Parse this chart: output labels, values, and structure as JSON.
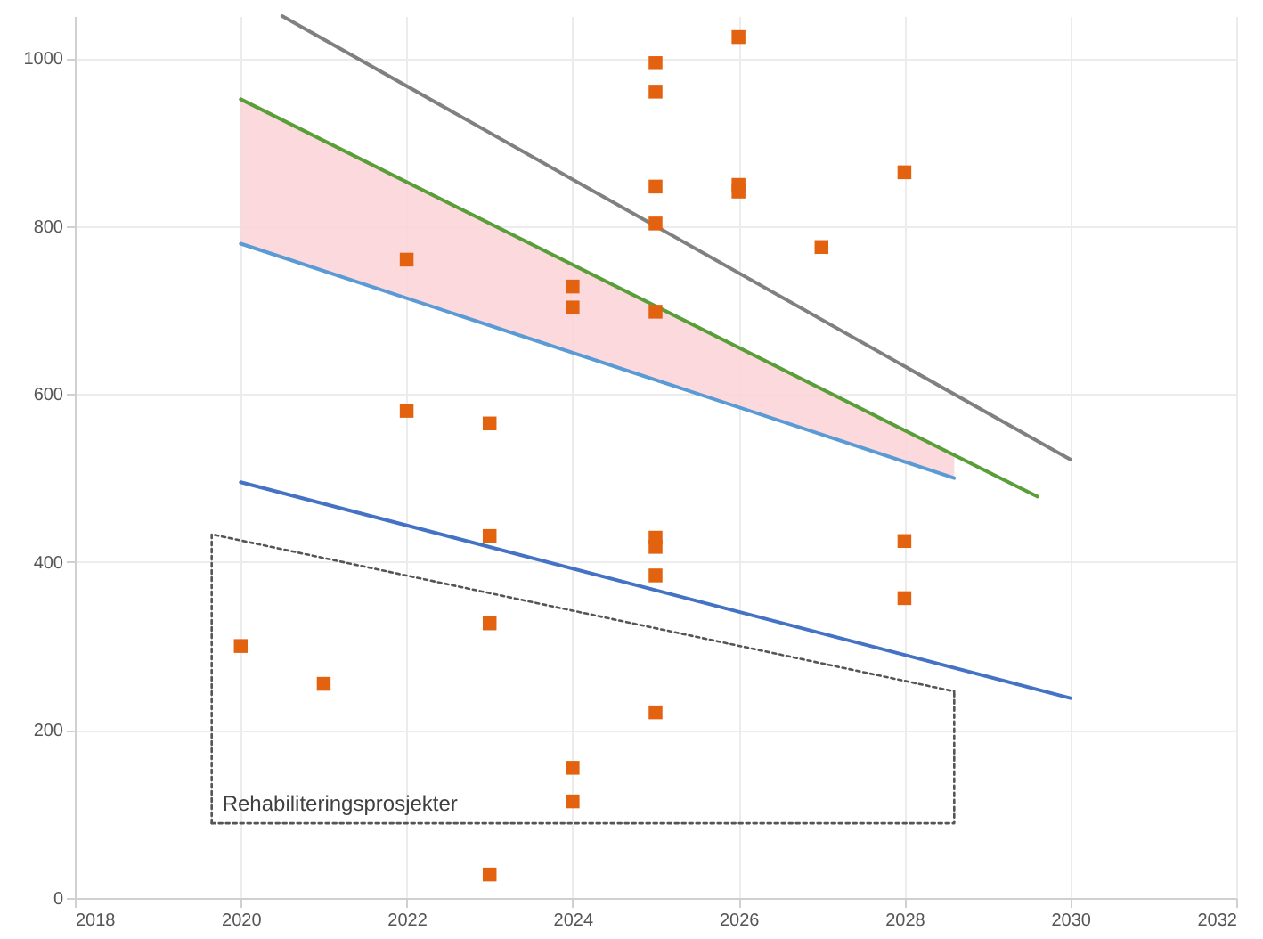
{
  "chart_data": {
    "type": "scatter",
    "xlim": [
      2018,
      2032
    ],
    "xticks": [
      2018,
      2020,
      2022,
      2024,
      2026,
      2028,
      2030,
      2032
    ],
    "ylim": [
      0,
      1050
    ],
    "yticks": [
      0,
      200,
      400,
      600,
      800,
      1000
    ],
    "grid": true,
    "series": [
      {
        "type": "line",
        "color": "#808080",
        "x": [
          2020.5,
          2030
        ],
        "values": [
          1050,
          522
        ]
      },
      {
        "type": "line",
        "color": "#5b9bd5",
        "x": [
          2020,
          2028.6
        ],
        "values": [
          779,
          500
        ],
        "lower": [
          779,
          500
        ],
        "upper": [
          951,
          527
        ]
      },
      {
        "type": "line",
        "color": "#5a9e3a",
        "x": [
          2020,
          2029.6
        ],
        "values": [
          951,
          478
        ]
      },
      {
        "type": "line",
        "color": "#4472c4",
        "x": [
          2020,
          2030
        ],
        "values": [
          495,
          238
        ]
      },
      {
        "type": "line",
        "name": "Rehabiliteringsprosjekter",
        "color": "#555555",
        "line_style": "dotted",
        "x": [
          2019.65,
          2019.65,
          2028.6
        ],
        "values": [
          89,
          433,
          246
        ]
      },
      {
        "type": "line",
        "color": "#555555",
        "line_style": "dotted",
        "x": [
          2019.65,
          2028.6,
          2028.6
        ],
        "values": [
          89,
          89,
          246
        ]
      },
      {
        "color": "#e2620f",
        "marker": "square",
        "x": [
          2020,
          2021,
          2022,
          2022,
          2023,
          2023,
          2023,
          2023,
          2024,
          2024,
          2024,
          2024,
          2025,
          2025,
          2025,
          2025,
          2025,
          2025,
          2025,
          2025,
          2025,
          2026,
          2026,
          2026,
          2027,
          2028,
          2028,
          2028
        ],
        "values": [
          300,
          255,
          760,
          580,
          565,
          431,
          327,
          28,
          728,
          703,
          155,
          115,
          994,
          960,
          847,
          803,
          698,
          429,
          418,
          384,
          221,
          1025,
          849,
          841,
          775,
          864,
          425,
          357
        ]
      }
    ]
  }
}
